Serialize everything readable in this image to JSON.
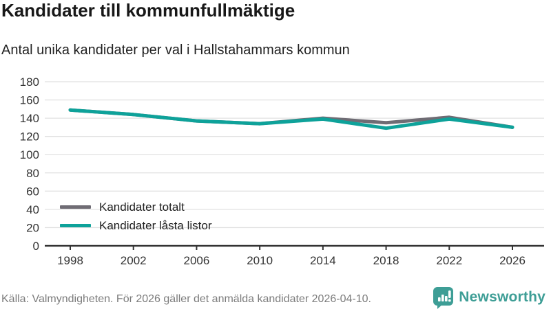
{
  "header": {
    "title": "Kandidater till kommunfullmäktige",
    "subtitle": "Antal unika kandidater per val i Hallstahammars kommun"
  },
  "chart_data": {
    "type": "line",
    "categories": [
      "1998",
      "2002",
      "2006",
      "2010",
      "2014",
      "2018",
      "2022",
      "2026"
    ],
    "series": [
      {
        "name": "Kandidater totalt",
        "color": "#6f6c74",
        "values": [
          149,
          144,
          137,
          134,
          140,
          135,
          141,
          130
        ]
      },
      {
        "name": "Kandidater låsta listor",
        "color": "#0ea29a",
        "values": [
          149,
          144,
          137,
          134,
          139,
          129,
          139,
          130
        ]
      }
    ],
    "title": "Kandidater till kommunfullmäktige",
    "subtitle": "Antal unika kandidater per val i Hallstahammars kommun",
    "xlabel": "",
    "ylabel": "",
    "ylim": [
      0,
      180
    ],
    "ytick_step": 20,
    "grid": "horizontal-only",
    "legend_position": "inside-lower-left"
  },
  "footer": {
    "source": "Källa: Valmyndigheten. För 2026 gäller det anmälda kandidater 2026-04-10.",
    "logo_text": "Newsworthy"
  },
  "colors": {
    "accent_teal": "#0ea29a",
    "series_gray": "#6f6c74",
    "logo_teal": "#3e9e96",
    "gridline": "#e1e1e1",
    "axis": "#333333"
  }
}
